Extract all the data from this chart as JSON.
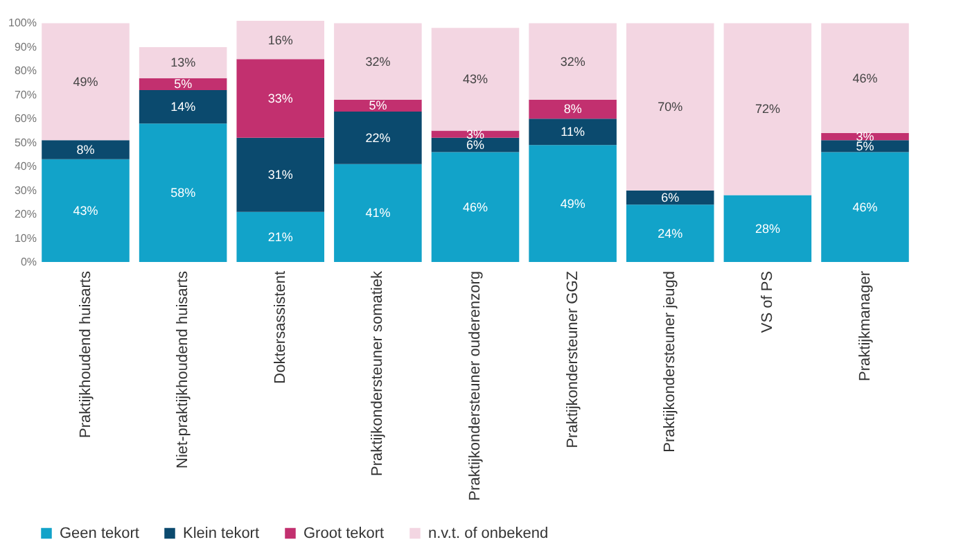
{
  "chart_data": {
    "type": "bar",
    "stacked": true,
    "categories": [
      "Praktijkhoudend huisarts",
      "Niet-praktijkhoudend huisarts",
      "Doktersassistent",
      "Praktijkondersteuner somatiek",
      "Praktijkondersteuner ouderenzorg",
      "Praktijkondersteuner GGZ",
      "Praktijkondersteuner jeugd",
      "VS of PS",
      "Praktijkmanager"
    ],
    "series": [
      {
        "name": "Geen tekort",
        "color": "#12a3c9",
        "values": [
          43,
          58,
          21,
          41,
          46,
          49,
          24,
          28,
          46
        ],
        "value_labels": [
          "43%",
          "58%",
          "21%",
          "41%",
          "46%",
          "49%",
          "24%",
          "28%",
          "46%"
        ]
      },
      {
        "name": "Klein tekort",
        "color": "#0b4a6e",
        "values": [
          8,
          14,
          31,
          22,
          6,
          11,
          6,
          null,
          5
        ],
        "value_labels": [
          "8%",
          "14%",
          "31%",
          "22%",
          "6%",
          "11%",
          "6%",
          null,
          "5%"
        ]
      },
      {
        "name": "Groot tekort",
        "color": "#c2306f",
        "values": [
          null,
          5,
          33,
          5,
          3,
          8,
          null,
          null,
          3
        ],
        "value_labels": [
          null,
          "5%",
          "33%",
          "5%",
          "3%",
          "8%",
          null,
          null,
          "3%"
        ]
      },
      {
        "name": "n.v.t. of onbekend",
        "color": "#f3d6e2",
        "values": [
          49,
          13,
          16,
          32,
          43,
          32,
          70,
          72,
          46
        ],
        "value_labels": [
          "49%",
          "13%",
          "16%",
          "32%",
          "43%",
          "32%",
          "70%",
          "72%",
          "46%"
        ]
      }
    ],
    "ylim": [
      0,
      101
    ],
    "yticks": [
      {
        "value": 0,
        "label": "0%"
      },
      {
        "value": 10,
        "label": "10%"
      },
      {
        "value": 20,
        "label": "20%"
      },
      {
        "value": 30,
        "label": "30%"
      },
      {
        "value": 40,
        "label": "40%"
      },
      {
        "value": 50,
        "label": "50%"
      },
      {
        "value": 60,
        "label": "60%"
      },
      {
        "value": 70,
        "label": "70%"
      },
      {
        "value": 80,
        "label": "80%"
      },
      {
        "value": 90,
        "label": "90%"
      },
      {
        "value": 100,
        "label": "100%"
      }
    ],
    "grid": false,
    "legend": "bottom"
  }
}
